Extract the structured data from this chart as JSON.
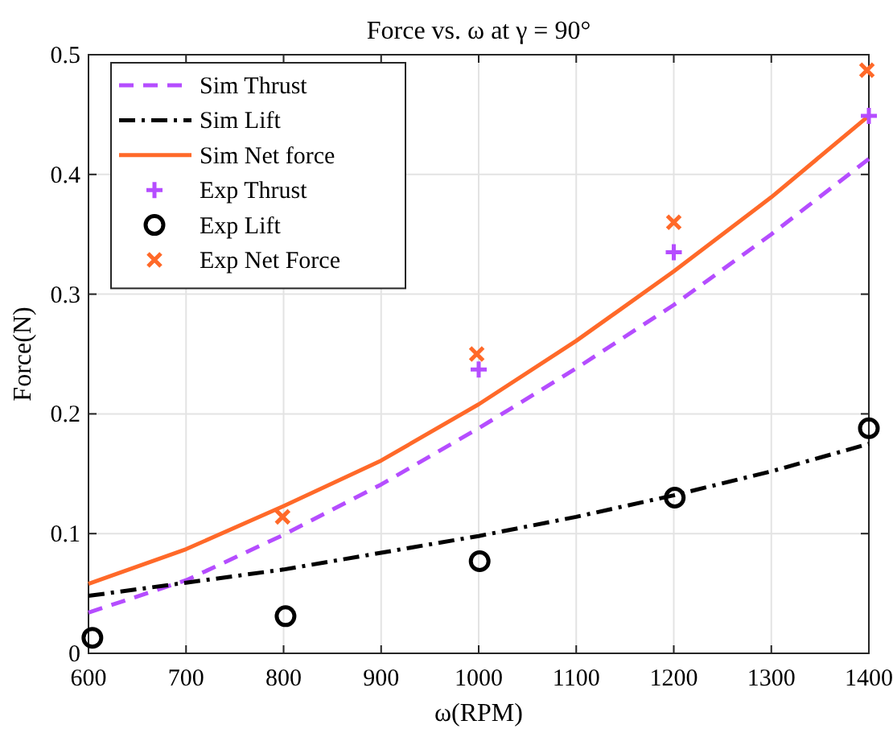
{
  "chart_data": {
    "type": "line",
    "title": "Force vs. ω at γ = 90°",
    "xlabel": "ω(RPM)",
    "ylabel": "Force(N)",
    "xlim": [
      600,
      1400
    ],
    "xticks": [
      600,
      700,
      800,
      900,
      1000,
      1100,
      1200,
      1300,
      1400
    ],
    "ylim": [
      0,
      0.5
    ],
    "yticks": [
      0,
      0.1,
      0.2,
      0.3,
      0.4,
      0.5
    ],
    "grid": true,
    "legend": "top left",
    "series": [
      {
        "name": "Sim Thrust",
        "color": "#b54dff",
        "line_style": "dashed",
        "x": [
          600,
          700,
          800,
          900,
          1000,
          1100,
          1200,
          1300,
          1400
        ],
        "values": [
          0.034,
          0.061,
          0.099,
          0.141,
          0.188,
          0.238,
          0.291,
          0.35,
          0.413
        ]
      },
      {
        "name": "Sim Lift",
        "color": "#000000",
        "line_style": "dashdot",
        "x": [
          600,
          700,
          800,
          900,
          1000,
          1100,
          1200,
          1300,
          1400
        ],
        "values": [
          0.048,
          0.059,
          0.07,
          0.084,
          0.098,
          0.114,
          0.132,
          0.152,
          0.175
        ]
      },
      {
        "name": "Sim Net force",
        "color": "#ff6929",
        "line_style": "solid",
        "x": [
          600,
          700,
          800,
          900,
          1000,
          1100,
          1200,
          1300,
          1400
        ],
        "values": [
          0.058,
          0.087,
          0.123,
          0.161,
          0.208,
          0.261,
          0.319,
          0.381,
          0.449
        ]
      },
      {
        "name": "Exp Thrust",
        "type": "scatter",
        "color": "#b54dff",
        "marker": "plus",
        "x": [
          1000,
          1200,
          1400
        ],
        "values": [
          0.237,
          0.335,
          0.449
        ]
      },
      {
        "name": "Exp Lift",
        "type": "scatter",
        "color": "#000000",
        "marker": "circle",
        "x": [
          604,
          802,
          1001,
          1201,
          1400
        ],
        "values": [
          0.013,
          0.031,
          0.077,
          0.13,
          0.188
        ]
      },
      {
        "name": "Exp Net Force",
        "type": "scatter",
        "color": "#ff6929",
        "marker": "cross",
        "x": [
          799,
          998,
          1200,
          1398
        ],
        "values": [
          0.114,
          0.25,
          0.36,
          0.487
        ]
      }
    ]
  }
}
